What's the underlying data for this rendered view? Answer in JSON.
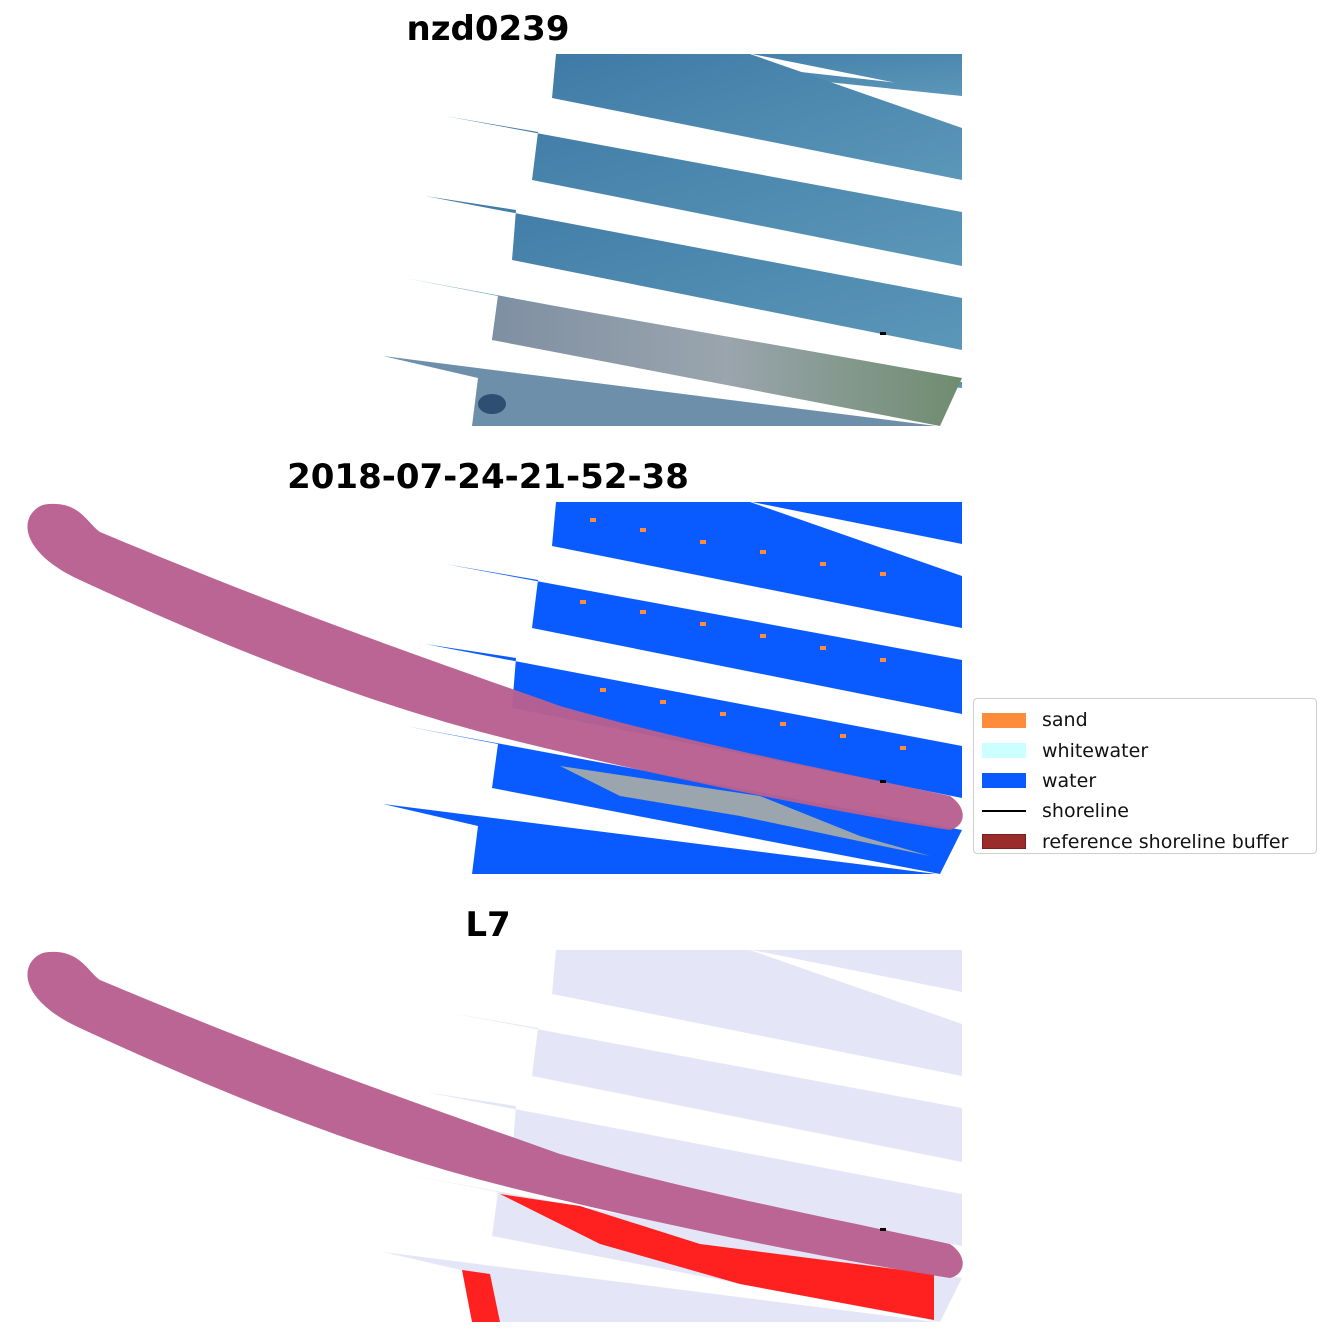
{
  "panels": [
    {
      "title": "nzd0239"
    },
    {
      "title": "2018-07-24-21-52-38"
    },
    {
      "title": "L7"
    }
  ],
  "legend": {
    "items": [
      {
        "label": "sand",
        "color": "#ff8c3a",
        "kind": "patch"
      },
      {
        "label": "whitewater",
        "color": "#ccffff",
        "kind": "patch"
      },
      {
        "label": "water",
        "color": "#0a5bff",
        "kind": "patch"
      },
      {
        "label": "shoreline",
        "color": "#000000",
        "kind": "line"
      },
      {
        "label": "reference shoreline buffer",
        "color": "#9b2c2c",
        "kind": "patch"
      }
    ]
  },
  "colors": {
    "rgb_water": "#4a86ad",
    "rgb_land": "#8e9aa8",
    "class_water": "#0a5bff",
    "buffer": "#b8608f",
    "index_bg": "#e6e8f8",
    "index_red": "#ff2020"
  }
}
